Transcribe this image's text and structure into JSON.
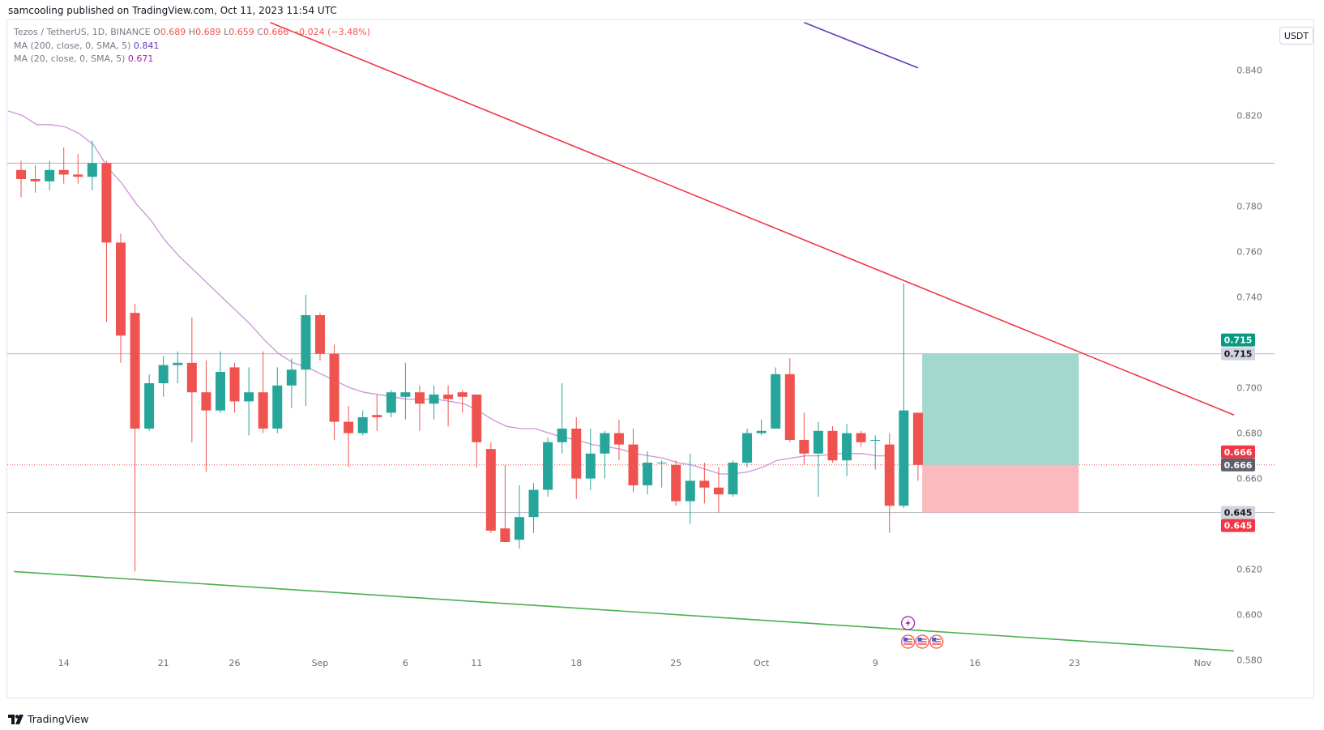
{
  "publisher_line": "samcooling published on TradingView.com, Oct 11, 2023 11:54 UTC",
  "legend": {
    "symbol": "Tezos / TetherUS, 1D, BINANCE",
    "ohlc": [
      {
        "k": "O",
        "v": "0.689"
      },
      {
        "k": "H",
        "v": "0.689"
      },
      {
        "k": "L",
        "v": "0.659"
      },
      {
        "k": "C",
        "v": "0.666"
      }
    ],
    "change": "−0.024 (−3.48%)",
    "ma200_label": "MA (200, close, 0, SMA, 5)",
    "ma200_value": "0.841",
    "ma20_label": "MA (20, close, 0, SMA, 5)",
    "ma20_value": "0.671"
  },
  "currency_button": "USDT",
  "footer_brand": "TradingView",
  "colors": {
    "up": "#26a69a",
    "down": "#ef5350",
    "ma20": "#ce93d8",
    "ma200": "#673ab7",
    "resistance": "#f23645",
    "support": "#4caf50",
    "target_zone": "#98d4c8",
    "stop_zone": "#f9b3b7"
  },
  "chart_data": {
    "type": "candlestick",
    "title": "Tezos / TetherUS, 1D, BINANCE",
    "ylim": [
      0.572,
      0.862
    ],
    "y_ticks": [
      "0.840",
      "0.820",
      "0.800",
      "0.780",
      "0.760",
      "0.740",
      "0.720",
      "0.700",
      "0.680",
      "0.660",
      "0.640",
      "0.620",
      "0.600",
      "0.580"
    ],
    "x_ticks": [
      {
        "label": "14",
        "bar": 3
      },
      {
        "label": "21",
        "bar": 10
      },
      {
        "label": "26",
        "bar": 15
      },
      {
        "label": "Sep",
        "bar": 21
      },
      {
        "label": "6",
        "bar": 27
      },
      {
        "label": "11",
        "bar": 32
      },
      {
        "label": "18",
        "bar": 39
      },
      {
        "label": "25",
        "bar": 46
      },
      {
        "label": "Oct",
        "bar": 52
      },
      {
        "label": "9",
        "bar": 60
      },
      {
        "label": "16",
        "bar": 67
      },
      {
        "label": "23",
        "bar": 74
      },
      {
        "label": "Nov",
        "bar": 83
      }
    ],
    "candles": [
      {
        "o": 0.796,
        "h": 0.8,
        "l": 0.784,
        "c": 0.792
      },
      {
        "o": 0.792,
        "h": 0.798,
        "l": 0.786,
        "c": 0.791
      },
      {
        "o": 0.791,
        "h": 0.8,
        "l": 0.787,
        "c": 0.796
      },
      {
        "o": 0.796,
        "h": 0.806,
        "l": 0.79,
        "c": 0.794
      },
      {
        "o": 0.794,
        "h": 0.803,
        "l": 0.79,
        "c": 0.793
      },
      {
        "o": 0.793,
        "h": 0.809,
        "l": 0.787,
        "c": 0.799
      },
      {
        "o": 0.799,
        "h": 0.8,
        "l": 0.729,
        "c": 0.764
      },
      {
        "o": 0.764,
        "h": 0.768,
        "l": 0.711,
        "c": 0.723
      },
      {
        "o": 0.733,
        "h": 0.737,
        "l": 0.619,
        "c": 0.682
      },
      {
        "o": 0.682,
        "h": 0.706,
        "l": 0.681,
        "c": 0.702
      },
      {
        "o": 0.702,
        "h": 0.714,
        "l": 0.696,
        "c": 0.71
      },
      {
        "o": 0.71,
        "h": 0.716,
        "l": 0.702,
        "c": 0.711
      },
      {
        "o": 0.711,
        "h": 0.731,
        "l": 0.676,
        "c": 0.698
      },
      {
        "o": 0.698,
        "h": 0.712,
        "l": 0.663,
        "c": 0.69
      },
      {
        "o": 0.69,
        "h": 0.716,
        "l": 0.689,
        "c": 0.707
      },
      {
        "o": 0.709,
        "h": 0.711,
        "l": 0.689,
        "c": 0.694
      },
      {
        "o": 0.694,
        "h": 0.709,
        "l": 0.679,
        "c": 0.698
      },
      {
        "o": 0.698,
        "h": 0.716,
        "l": 0.68,
        "c": 0.682
      },
      {
        "o": 0.682,
        "h": 0.709,
        "l": 0.68,
        "c": 0.701
      },
      {
        "o": 0.701,
        "h": 0.713,
        "l": 0.691,
        "c": 0.708
      },
      {
        "o": 0.708,
        "h": 0.741,
        "l": 0.692,
        "c": 0.732
      },
      {
        "o": 0.732,
        "h": 0.733,
        "l": 0.712,
        "c": 0.715
      },
      {
        "o": 0.715,
        "h": 0.719,
        "l": 0.677,
        "c": 0.685
      },
      {
        "o": 0.685,
        "h": 0.692,
        "l": 0.665,
        "c": 0.68
      },
      {
        "o": 0.68,
        "h": 0.69,
        "l": 0.679,
        "c": 0.687
      },
      {
        "o": 0.688,
        "h": 0.697,
        "l": 0.681,
        "c": 0.687
      },
      {
        "o": 0.689,
        "h": 0.699,
        "l": 0.687,
        "c": 0.698
      },
      {
        "o": 0.696,
        "h": 0.711,
        "l": 0.686,
        "c": 0.698
      },
      {
        "o": 0.698,
        "h": 0.701,
        "l": 0.681,
        "c": 0.693
      },
      {
        "o": 0.693,
        "h": 0.701,
        "l": 0.686,
        "c": 0.697
      },
      {
        "o": 0.697,
        "h": 0.701,
        "l": 0.683,
        "c": 0.695
      },
      {
        "o": 0.698,
        "h": 0.699,
        "l": 0.689,
        "c": 0.696
      },
      {
        "o": 0.697,
        "h": 0.697,
        "l": 0.665,
        "c": 0.676
      },
      {
        "o": 0.673,
        "h": 0.676,
        "l": 0.636,
        "c": 0.637
      },
      {
        "o": 0.638,
        "h": 0.666,
        "l": 0.633,
        "c": 0.632
      },
      {
        "o": 0.633,
        "h": 0.657,
        "l": 0.629,
        "c": 0.643
      },
      {
        "o": 0.643,
        "h": 0.658,
        "l": 0.636,
        "c": 0.655
      },
      {
        "o": 0.655,
        "h": 0.678,
        "l": 0.652,
        "c": 0.676
      },
      {
        "o": 0.676,
        "h": 0.702,
        "l": 0.671,
        "c": 0.682
      },
      {
        "o": 0.682,
        "h": 0.687,
        "l": 0.651,
        "c": 0.66
      },
      {
        "o": 0.66,
        "h": 0.682,
        "l": 0.655,
        "c": 0.671
      },
      {
        "o": 0.671,
        "h": 0.681,
        "l": 0.66,
        "c": 0.68
      },
      {
        "o": 0.68,
        "h": 0.686,
        "l": 0.668,
        "c": 0.675
      },
      {
        "o": 0.675,
        "h": 0.682,
        "l": 0.654,
        "c": 0.657
      },
      {
        "o": 0.657,
        "h": 0.672,
        "l": 0.653,
        "c": 0.667
      },
      {
        "o": 0.667,
        "h": 0.668,
        "l": 0.656,
        "c": 0.667
      },
      {
        "o": 0.666,
        "h": 0.668,
        "l": 0.648,
        "c": 0.65
      },
      {
        "o": 0.65,
        "h": 0.671,
        "l": 0.64,
        "c": 0.659
      },
      {
        "o": 0.659,
        "h": 0.667,
        "l": 0.649,
        "c": 0.656
      },
      {
        "o": 0.656,
        "h": 0.665,
        "l": 0.645,
        "c": 0.653
      },
      {
        "o": 0.653,
        "h": 0.668,
        "l": 0.652,
        "c": 0.667
      },
      {
        "o": 0.667,
        "h": 0.682,
        "l": 0.665,
        "c": 0.68
      },
      {
        "o": 0.68,
        "h": 0.686,
        "l": 0.679,
        "c": 0.681
      },
      {
        "o": 0.682,
        "h": 0.709,
        "l": 0.682,
        "c": 0.706
      },
      {
        "o": 0.706,
        "h": 0.713,
        "l": 0.676,
        "c": 0.677
      },
      {
        "o": 0.677,
        "h": 0.689,
        "l": 0.666,
        "c": 0.671
      },
      {
        "o": 0.671,
        "h": 0.685,
        "l": 0.652,
        "c": 0.681
      },
      {
        "o": 0.681,
        "h": 0.683,
        "l": 0.667,
        "c": 0.668
      },
      {
        "o": 0.668,
        "h": 0.684,
        "l": 0.661,
        "c": 0.68
      },
      {
        "o": 0.68,
        "h": 0.681,
        "l": 0.674,
        "c": 0.676
      },
      {
        "o": 0.677,
        "h": 0.679,
        "l": 0.664,
        "c": 0.677
      },
      {
        "o": 0.675,
        "h": 0.68,
        "l": 0.636,
        "c": 0.648
      },
      {
        "o": 0.648,
        "h": 0.746,
        "l": 0.647,
        "c": 0.69
      },
      {
        "o": 0.689,
        "h": 0.689,
        "l": 0.659,
        "c": 0.666
      }
    ],
    "ma20": [
      0.822,
      0.82,
      0.816,
      0.816,
      0.815,
      0.812,
      0.807,
      0.797,
      0.79,
      0.781,
      0.774,
      0.765,
      0.758,
      0.752,
      0.746,
      0.74,
      0.734,
      0.728,
      0.721,
      0.715,
      0.711,
      0.709,
      0.706,
      0.703,
      0.7,
      0.698,
      0.697,
      0.696,
      0.695,
      0.695,
      0.695,
      0.694,
      0.693,
      0.69,
      0.686,
      0.683,
      0.682,
      0.682,
      0.68,
      0.678,
      0.677,
      0.675,
      0.674,
      0.673,
      0.671,
      0.67,
      0.669,
      0.667,
      0.666,
      0.664,
      0.662,
      0.662,
      0.663,
      0.665,
      0.668,
      0.669,
      0.67,
      0.67,
      0.671,
      0.671,
      0.671,
      0.67,
      0.67
    ],
    "ma200": [
      {
        "bar": 55.0,
        "y": 0.861
      },
      {
        "bar": 63.0,
        "y": 0.841
      }
    ],
    "resistance_line": [
      {
        "bar": 17.5,
        "y": 0.861
      },
      {
        "bar": 85.2,
        "y": 0.688
      }
    ],
    "support_line": [
      {
        "bar": -0.5,
        "y": 0.619
      },
      {
        "bar": 85.2,
        "y": 0.584
      }
    ],
    "horizontal_levels": [
      {
        "value": 0.799,
        "label": "0.799"
      },
      {
        "value": 0.715,
        "label": "0.715"
      },
      {
        "value": 0.645,
        "label": "0.645"
      }
    ],
    "position": {
      "entry": 0.666,
      "target": 0.715,
      "stop": 0.645,
      "bar_start": 63.3,
      "bar_end": 74.3
    },
    "price_labels": [
      {
        "value": 0.715,
        "text": "0.715",
        "role": "target",
        "offset": -17
      },
      {
        "value": 0.715,
        "text": "0.715",
        "role": "level",
        "offset": 0
      },
      {
        "value": 0.666,
        "text": "0.666",
        "role": "last-price",
        "offset": -16
      },
      {
        "value": 0.666,
        "text": "0.666",
        "role": "entry",
        "offset": 0
      },
      {
        "value": 0.645,
        "text": "0.645",
        "role": "level",
        "offset": 0
      },
      {
        "value": 0.645,
        "text": "0.645",
        "role": "stop",
        "offset": 16
      }
    ],
    "events": [
      {
        "bar": 62.3,
        "icon": "lightning-icon",
        "row": 0
      },
      {
        "bar": 62.3,
        "icon": "us-flag-icon",
        "row": 1
      },
      {
        "bar": 63.3,
        "icon": "us-flag-icon",
        "row": 1
      },
      {
        "bar": 64.3,
        "icon": "us-flag-icon",
        "row": 1
      }
    ]
  }
}
